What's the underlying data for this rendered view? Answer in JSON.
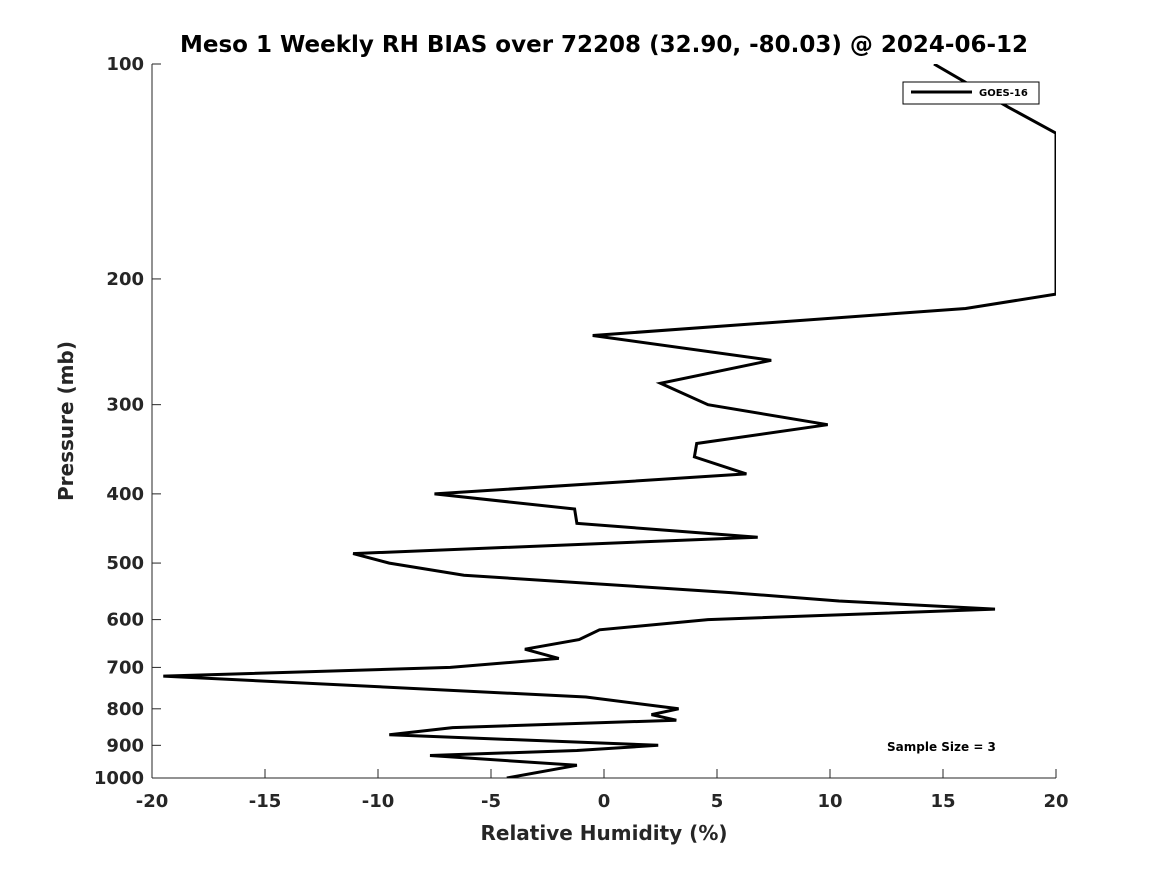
{
  "chart_data": {
    "type": "line",
    "title": "Meso 1 Weekly RH BIAS over 72208 (32.90, -80.03) @ 2024-06-12",
    "xlabel": "Relative Humidity (%)",
    "ylabel": "Pressure (mb)",
    "xlim": [
      -20,
      20
    ],
    "ylim": [
      100,
      1000
    ],
    "y_scale": "log",
    "y_reversed": true,
    "grid": false,
    "legend_position": "top-right",
    "x_ticks": [
      -20,
      -15,
      -10,
      -5,
      0,
      5,
      10,
      15,
      20
    ],
    "x_tick_labels": [
      "-20",
      "-15",
      "-10",
      "-5",
      "0",
      "5",
      "10",
      "15",
      "20"
    ],
    "y_ticks": [
      100,
      200,
      300,
      400,
      500,
      600,
      700,
      800,
      900,
      1000
    ],
    "y_tick_labels": [
      "100",
      "200",
      "300",
      "400",
      "500",
      "600",
      "700",
      "800",
      "900",
      "1000"
    ],
    "series": [
      {
        "name": "GOES-16",
        "color": "#000000",
        "points": [
          [
            14.6,
            100
          ],
          [
            17.9,
            115
          ],
          [
            20.0,
            125
          ],
          [
            20.0,
            210
          ],
          [
            16.0,
            220
          ],
          [
            -0.5,
            240
          ],
          [
            7.4,
            260
          ],
          [
            2.5,
            280
          ],
          [
            4.6,
            300
          ],
          [
            9.9,
            320
          ],
          [
            4.1,
            340
          ],
          [
            4.0,
            355
          ],
          [
            6.3,
            375
          ],
          [
            -7.5,
            400
          ],
          [
            -1.3,
            420
          ],
          [
            -1.2,
            440
          ],
          [
            6.8,
            460
          ],
          [
            -11.1,
            485
          ],
          [
            -9.5,
            500
          ],
          [
            -6.2,
            520
          ],
          [
            5.6,
            550
          ],
          [
            10.4,
            565
          ],
          [
            17.3,
            580
          ],
          [
            4.6,
            600
          ],
          [
            -0.2,
            620
          ],
          [
            -1.1,
            640
          ],
          [
            -3.5,
            660
          ],
          [
            -2.0,
            680
          ],
          [
            -6.8,
            700
          ],
          [
            -19.5,
            720
          ],
          [
            -0.8,
            770
          ],
          [
            3.3,
            800
          ],
          [
            2.1,
            815
          ],
          [
            3.2,
            830
          ],
          [
            -6.7,
            850
          ],
          [
            -9.5,
            870
          ],
          [
            2.4,
            900
          ],
          [
            -1.2,
            915
          ],
          [
            -7.7,
            930
          ],
          [
            -1.2,
            960
          ],
          [
            -4.3,
            1000
          ]
        ]
      }
    ],
    "annotations": [
      "Sample Size = 3"
    ]
  }
}
